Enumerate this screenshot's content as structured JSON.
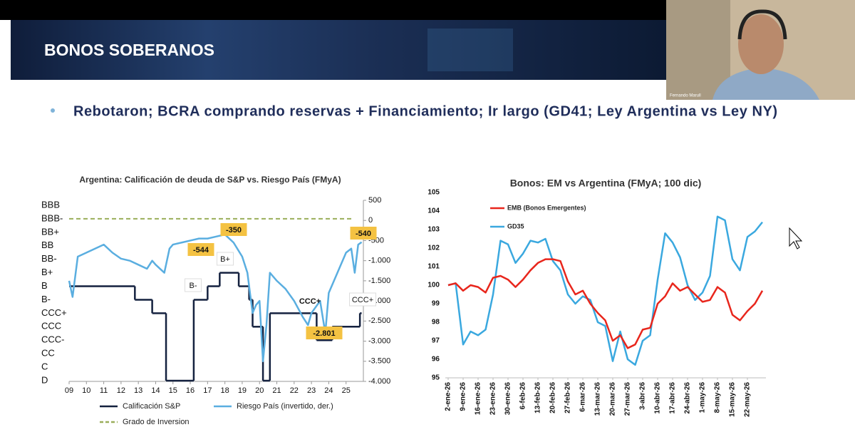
{
  "header": {
    "title": "BONOS SOBERANOS"
  },
  "bullet": "Rebotaron; BCRA comprando reservas + Financiamiento; Ir largo (GD41; Ley Argentina vs Ley NY)",
  "webcam": {
    "name": "Fernando Marull"
  },
  "chart_data": [
    {
      "type": "line",
      "title": "Argentina: Calificación de deuda de S&P vs. Riesgo País (FMyA)",
      "xlim": [
        9,
        26
      ],
      "xticks": [
        {
          "value": 9,
          "label": "09"
        },
        10,
        11,
        12,
        13,
        14,
        15,
        16,
        17,
        18,
        19,
        20,
        21,
        22,
        23,
        24,
        25
      ],
      "ycategories": [
        "BBB",
        "BBB-",
        "BB+",
        "BB",
        "BB-",
        "B+",
        "B",
        "B-",
        "CCC+",
        "CCC",
        "CCC-",
        "CC",
        "C",
        "D"
      ],
      "y2lim": [
        -4000,
        500
      ],
      "y2ticks": [
        500,
        0,
        -500,
        {
          "value": -1000,
          "label": "-1.000"
        },
        {
          "value": -1500,
          "label": "-1.500"
        },
        {
          "value": -2000,
          "label": "-2.000"
        },
        {
          "value": -2500,
          "label": "-2.500"
        },
        {
          "value": -3000,
          "label": "-3.000"
        },
        {
          "value": -3500,
          "label": "-3.500"
        },
        {
          "value": -4000,
          "label": "-4.000"
        }
      ],
      "series": [
        {
          "name": "Calificación S&P",
          "color": "#14213f",
          "step": true,
          "x": [
            9,
            12.8,
            13.8,
            14.6,
            16.2,
            17,
            17.7,
            18.8,
            19.4,
            19.6,
            20.2,
            20.6,
            23.3,
            24.2,
            25.8,
            25.9
          ],
          "values": [
            "B",
            "B-",
            "CCC+",
            "D",
            "B-",
            "B",
            "B+",
            "B",
            "B-",
            "CCC",
            "D",
            "CCC+",
            "CCC-",
            "CCC",
            "CCC+",
            "CCC+"
          ]
        },
        {
          "name": "Riesgo País (invertido, der.)",
          "color": "#5aaee0",
          "axis": "y2",
          "x": [
            9.0,
            9.2,
            9.5,
            10,
            10.5,
            11,
            11.5,
            12,
            12.5,
            13,
            13.5,
            13.8,
            14,
            14.5,
            14.8,
            15,
            15.5,
            16,
            16.5,
            17,
            17.5,
            18,
            18.5,
            19,
            19.3,
            19.6,
            19.8,
            20.0,
            20.2,
            20.4,
            20.6,
            21,
            21.5,
            22,
            22.5,
            22.8,
            23,
            23.5,
            23.8,
            24,
            24.5,
            25,
            25.3,
            25.5,
            25.7,
            25.9
          ],
          "values": [
            -1500,
            -1900,
            -900,
            -800,
            -700,
            -600,
            -800,
            -950,
            -1000,
            -1100,
            -1200,
            -1000,
            -1100,
            -1300,
            -700,
            -600,
            -550,
            -500,
            -450,
            -450,
            -400,
            -350,
            -550,
            -900,
            -1300,
            -2300,
            -2100,
            -2000,
            -3500,
            -2600,
            -1300,
            -1500,
            -1700,
            -2000,
            -2400,
            -2600,
            -2300,
            -2000,
            -2800,
            -1800,
            -1300,
            -800,
            -700,
            -1300,
            -600,
            -540
          ]
        }
      ],
      "reference_lines": [
        {
          "name": "Grado de Inversion",
          "color": "#9aae5a",
          "value": "BBB-",
          "dashed": true
        }
      ],
      "annotations": [
        "-350",
        "-544",
        "-540",
        "-2.801",
        "B+",
        "B-",
        "CCC+",
        "CCC+"
      ]
    },
    {
      "type": "line",
      "title": "Bonos: EM vs Argentina (FMyA; 100 dic)",
      "categories": [
        "2-ene-26",
        null,
        "9-ene-26",
        null,
        "16-ene-26",
        null,
        "23-ene-26",
        null,
        "30-ene-26",
        null,
        "6-feb-26",
        null,
        "13-feb-26",
        null,
        "20-feb-26",
        null,
        "27-feb-26",
        null,
        "6-mar-26",
        null,
        "13-mar-26",
        null,
        "20-mar-26",
        null,
        "27-mar-26",
        null,
        "3-abr-26",
        null,
        "10-abr-26",
        null,
        "17-abr-26",
        null,
        "24-abr-26",
        null,
        "1-may-26",
        null,
        "8-may-26",
        null,
        "15-may-26",
        null,
        "22-may-26",
        null,
        null
      ],
      "ylim": [
        95,
        105
      ],
      "yticks": [
        95,
        96,
        97,
        98,
        99,
        100,
        101,
        102,
        103,
        104,
        105
      ],
      "series": [
        {
          "name": "EMB (Bonos Emergentes)",
          "color": "#e8261c",
          "values": [
            100,
            100.1,
            99.7,
            100.0,
            99.9,
            99.6,
            100.4,
            100.5,
            100.3,
            99.9,
            100.3,
            100.8,
            101.2,
            101.4,
            101.4,
            101.3,
            100.2,
            99.5,
            99.7,
            99.0,
            98.5,
            98.1,
            97.0,
            97.3,
            96.6,
            96.8,
            97.6,
            97.7,
            99.0,
            99.4,
            100.1,
            99.7,
            99.9,
            99.5,
            99.1,
            99.2,
            99.9,
            99.6,
            98.4,
            98.1,
            98.6,
            99.0,
            99.7
          ]
        },
        {
          "name": "GD35",
          "color": "#3aa8df",
          "values": [
            100,
            100.1,
            96.8,
            97.5,
            97.3,
            97.6,
            99.5,
            102.4,
            102.2,
            101.2,
            101.7,
            102.4,
            102.3,
            102.5,
            101.3,
            100.8,
            99.5,
            99.0,
            99.4,
            99.2,
            98.0,
            97.8,
            95.9,
            97.5,
            96.0,
            95.7,
            97.0,
            97.3,
            100.3,
            102.8,
            102.3,
            101.5,
            100.0,
            99.2,
            99.6,
            100.5,
            103.7,
            103.5,
            101.4,
            100.8,
            102.6,
            102.9,
            103.4
          ]
        }
      ],
      "legend": "upper left"
    }
  ]
}
